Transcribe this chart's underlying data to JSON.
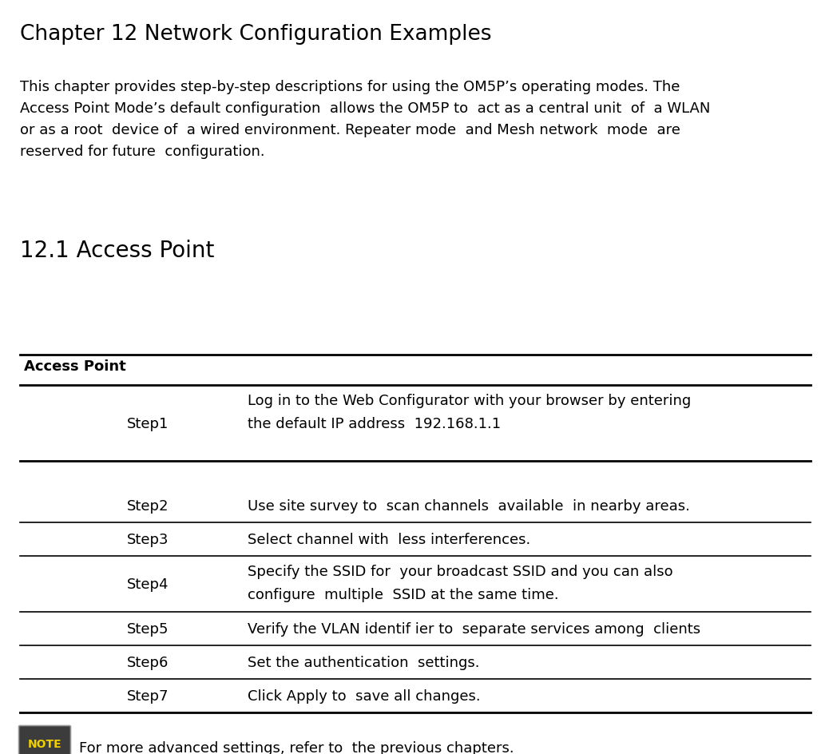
{
  "title": "Chapter 12 Network Configuration Examples",
  "intro_text": "This chapter provides step-by-step descriptions for using the OM5P’s operating modes. The\nAccess Point Mode’s default configuration  allows the OM5P to  act as a central unit  of  a WLAN\nor as a root  device of  a wired environment. Repeater mode  and Mesh network  mode  are\nreserved for future  configuration.",
  "section_title": "12.1 Access Point",
  "table_header": "Access Point",
  "step_rows": [
    {
      "step": "Step1",
      "desc": "Log in to the Web Configurator with your browser by entering\nthe default IP address  192.168.1.1",
      "two_line": true,
      "thick_below": true,
      "gap_below": true
    },
    {
      "step": "Step2",
      "desc": "Use site survey to  scan channels  available  in nearby areas.",
      "two_line": false,
      "thick_below": false,
      "gap_below": false
    },
    {
      "step": "Step3",
      "desc": "Select channel with  less interferences.",
      "two_line": false,
      "thick_below": false,
      "gap_below": false
    },
    {
      "step": "Step4",
      "desc": "Specify the SSID for  your broadcast SSID and you can also\nconfigure  multiple  SSID at the same time.",
      "two_line": true,
      "thick_below": false,
      "gap_below": false
    },
    {
      "step": "Step5",
      "desc": "Verify the VLAN identif ier to  separate services among  clients",
      "two_line": false,
      "thick_below": false,
      "gap_below": false
    },
    {
      "step": "Step6",
      "desc": "Set the authentication  settings.",
      "two_line": false,
      "thick_below": false,
      "gap_below": false
    },
    {
      "step": "Step7",
      "desc": "Click Apply to  save all changes.",
      "two_line": false,
      "thick_below": false,
      "gap_below": false
    }
  ],
  "note_text": "For more advanced settings, refer to  the previous chapters.",
  "bg_color": "#ffffff",
  "text_color": "#000000",
  "line_color": "#000000",
  "title_fontsize": 19,
  "section_fontsize": 20,
  "body_fontsize": 13,
  "header_fontsize": 13
}
